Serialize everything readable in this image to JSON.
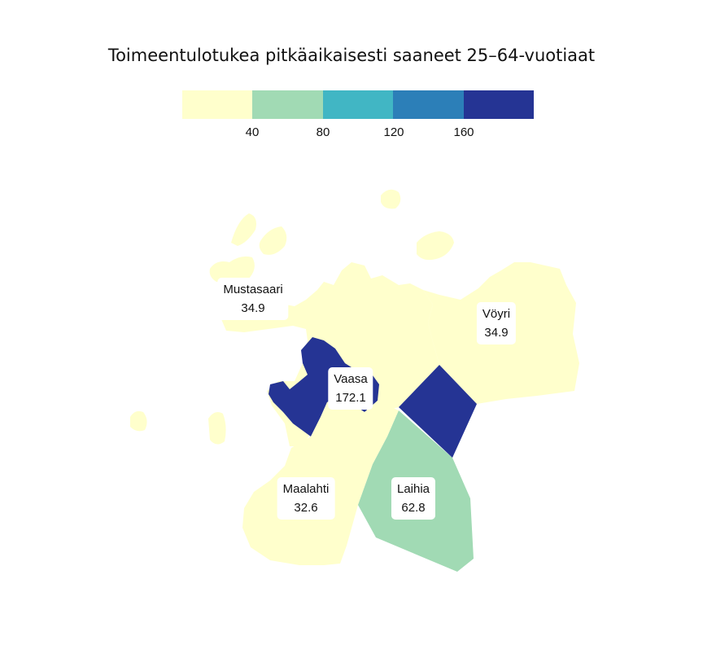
{
  "title": "Toimeentulotukea pitkäaikaisesti saaneet 25–64-vuotiaat",
  "legend": {
    "colors": [
      "#ffffcc",
      "#a1dab4",
      "#41b6c4",
      "#2c7fb8",
      "#253494"
    ],
    "ticks": [
      "40",
      "80",
      "120",
      "160"
    ]
  },
  "regions": {
    "mustasaari": {
      "name": "Mustasaari",
      "value": "34.9",
      "color": "#ffffcc"
    },
    "voyri": {
      "name": "Vöyri",
      "value": "34.9",
      "color": "#ffffcc"
    },
    "vaasa": {
      "name": "Vaasa",
      "value": "172.1",
      "color": "#253494"
    },
    "maalahti": {
      "name": "Maalahti",
      "value": "32.6",
      "color": "#ffffcc"
    },
    "laihia": {
      "name": "Laihia",
      "value": "62.8",
      "color": "#a1dab4"
    }
  }
}
